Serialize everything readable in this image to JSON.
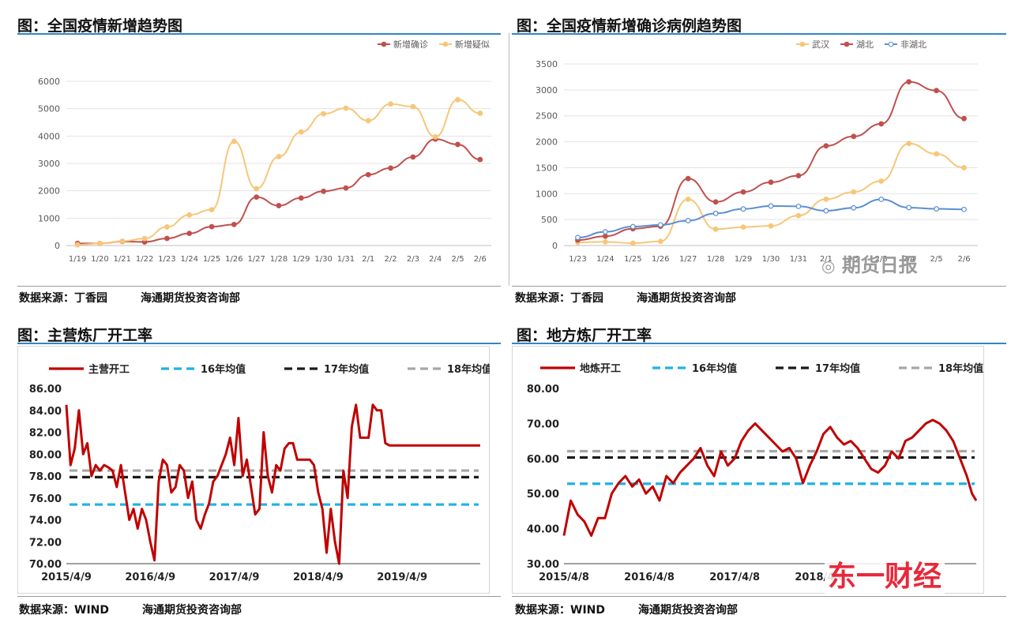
{
  "panels": [
    {
      "title": "图：全国疫情新增趋势图",
      "source": [
        "数据来源：丁香园",
        "海通期货投资咨询部"
      ]
    },
    {
      "title": "图：全国疫情新增确诊病例趋势图",
      "source": [
        "数据来源：丁香园",
        "海通期货投资咨询部"
      ]
    },
    {
      "title": "图：主营炼厂开工率",
      "source": [
        "数据来源：WIND",
        "海通期货投资咨询部"
      ]
    },
    {
      "title": "图：地方炼厂开工率",
      "source": [
        "数据来源：WIND",
        "海通期货投资咨询部"
      ]
    }
  ],
  "watermarks": {
    "qihuo": "期货日报",
    "dongyi": "东一财经"
  },
  "colors": {
    "accent_line": "#2f86c8",
    "red": "#c0504d",
    "orange": "#f5c779",
    "blue": "#5b8fd2",
    "dark_red": "#c00000",
    "cyan": "#1fb1e6",
    "black": "#1a1a1a",
    "gray": "#a6a6a6"
  },
  "chart_data": [
    {
      "type": "line",
      "categories": [
        "1/19",
        "1/20",
        "1/21",
        "1/22",
        "1/23",
        "1/24",
        "1/25",
        "1/26",
        "1/27",
        "1/28",
        "1/29",
        "1/30",
        "1/31",
        "2/1",
        "2/2",
        "2/3",
        "2/4",
        "2/5",
        "2/6"
      ],
      "ylim": [
        0,
        6000
      ],
      "yticks": [
        0,
        1000,
        2000,
        3000,
        4000,
        5000,
        6000
      ],
      "grid": true,
      "legend_position": "top-right",
      "series": [
        {
          "name": "新增确诊",
          "color": "#c0504d",
          "values": [
            77,
            77,
            149,
            131,
            259,
            444,
            688,
            769,
            1771,
            1459,
            1737,
            1982,
            2102,
            2590,
            2829,
            3235,
            3887,
            3694,
            3143
          ]
        },
        {
          "name": "新增疑似",
          "color": "#f5c779",
          "values": [
            27,
            77,
            158,
            257,
            680,
            1118,
            1309,
            3806,
            2077,
            3248,
            4148,
            4812,
            5019,
            4562,
            5173,
            5072,
            3971,
            5328,
            4833
          ]
        }
      ]
    },
    {
      "type": "line",
      "categories": [
        "1/23",
        "1/24",
        "1/25",
        "1/26",
        "1/27",
        "1/28",
        "1/29",
        "1/30",
        "1/31",
        "2/1",
        "2/2",
        "2/3",
        "2/4",
        "2/5",
        "2/6"
      ],
      "ylim": [
        0,
        3500
      ],
      "yticks": [
        0,
        500,
        1000,
        1500,
        2000,
        2500,
        3000,
        3500
      ],
      "grid": true,
      "legend_position": "top",
      "series": [
        {
          "name": "武汉",
          "color": "#f5c779",
          "values": [
            62,
            70,
            46,
            80,
            892,
            315,
            356,
            378,
            576,
            894,
            1033,
            1242,
            1967,
            1766,
            1501
          ]
        },
        {
          "name": "湖北",
          "color": "#c0504d",
          "values": [
            105,
            180,
            323,
            371,
            1291,
            840,
            1032,
            1220,
            1347,
            1921,
            2103,
            2345,
            3156,
            2987,
            2447
          ]
        },
        {
          "name": "非湖北",
          "color": "#5b8fd2",
          "values": [
            154,
            264,
            365,
            398,
            480,
            619,
            705,
            762,
            755,
            669,
            726,
            890,
            731,
            707,
            696
          ]
        }
      ]
    },
    {
      "type": "line",
      "x_tick_labels": [
        "2015/4/9",
        "2016/4/9",
        "2017/4/9",
        "2018/4/9",
        "2019/4/9"
      ],
      "x_range": [
        2015.27,
        2020.2
      ],
      "ylim": [
        70,
        86
      ],
      "yticks": [
        70.0,
        72.0,
        74.0,
        76.0,
        78.0,
        80.0,
        82.0,
        84.0,
        86.0
      ],
      "legend_position": "top",
      "series": [
        {
          "name": "主营开工",
          "color": "#c00000",
          "x": [
            2015.27,
            2015.32,
            2015.37,
            2015.42,
            2015.47,
            2015.52,
            2015.57,
            2015.62,
            2015.67,
            2015.72,
            2015.77,
            2015.82,
            2015.87,
            2015.92,
            2015.97,
            2016.02,
            2016.07,
            2016.12,
            2016.17,
            2016.22,
            2016.27,
            2016.32,
            2016.37,
            2016.42,
            2016.47,
            2016.52,
            2016.57,
            2016.62,
            2016.67,
            2016.72,
            2016.77,
            2016.82,
            2016.87,
            2016.92,
            2016.97,
            2017.02,
            2017.07,
            2017.12,
            2017.17,
            2017.22,
            2017.27,
            2017.32,
            2017.37,
            2017.42,
            2017.47,
            2017.52,
            2017.57,
            2017.62,
            2017.67,
            2017.72,
            2017.77,
            2017.82,
            2017.87,
            2017.92,
            2017.97,
            2018.02,
            2018.07,
            2018.12,
            2018.17,
            2018.22,
            2018.27,
            2018.32,
            2018.37,
            2018.42,
            2018.47,
            2018.52,
            2018.57,
            2018.62,
            2018.67,
            2018.72,
            2018.77,
            2018.82,
            2018.87,
            2018.92,
            2018.97,
            2019.02,
            2019.07,
            2019.12,
            2019.17,
            2019.22,
            2019.27,
            2019.32,
            2019.37,
            2019.42,
            2019.47,
            2019.52,
            2019.57,
            2019.62,
            2019.67,
            2019.72,
            2019.77,
            2019.82,
            2019.87,
            2019.92,
            2019.97,
            2020.02,
            2020.07,
            2020.12,
            2020.17,
            2020.2
          ],
          "values": [
            84.5,
            79.0,
            80.5,
            84.0,
            80.0,
            81.0,
            78.0,
            79.0,
            78.5,
            79.0,
            78.8,
            78.5,
            77.0,
            79.0,
            76.5,
            74.0,
            75.0,
            73.2,
            75.0,
            74.0,
            72.0,
            70.3,
            77.5,
            79.5,
            79.0,
            76.5,
            77.0,
            79.0,
            78.5,
            76.0,
            77.5,
            74.0,
            73.2,
            74.5,
            75.5,
            77.5,
            78.0,
            79.0,
            80.0,
            81.5,
            79.0,
            83.3,
            78.0,
            79.5,
            77.0,
            74.5,
            75.0,
            82.0,
            78.0,
            76.5,
            79.0,
            78.5,
            80.5,
            81.0,
            81.0,
            79.5,
            79.5,
            79.5,
            79.5,
            79.0,
            76.5,
            75.0,
            71.0,
            75.0,
            72.0,
            70.0,
            78.5,
            76.0,
            82.5,
            84.5,
            81.5,
            81.5,
            81.5,
            84.5,
            84.0,
            84.0,
            81.0,
            80.8,
            80.8,
            80.8,
            80.8,
            80.8,
            80.8,
            80.8,
            80.8,
            80.8,
            80.8,
            80.8,
            80.8,
            80.8,
            80.8,
            80.8,
            80.8,
            80.8,
            80.8,
            80.8,
            80.8,
            80.8,
            80.8,
            80.8
          ]
        },
        {
          "name": "16年均值",
          "color": "#1fb1e6",
          "dashed": true,
          "constant": 75.4
        },
        {
          "name": "17年均值",
          "color": "#1a1a1a",
          "dashed": true,
          "constant": 77.9
        },
        {
          "name": "18年均值",
          "color": "#a6a6a6",
          "dashed": true,
          "constant": 78.5
        }
      ]
    },
    {
      "type": "line",
      "x_tick_labels": [
        "2015/4/8",
        "2016/4/8",
        "2017/4/8",
        "2018/4/8"
      ],
      "x_range": [
        2015.27,
        2020.1
      ],
      "ylim": [
        30,
        80
      ],
      "yticks": [
        30.0,
        40.0,
        50.0,
        60.0,
        70.0,
        80.0
      ],
      "legend_position": "top",
      "series": [
        {
          "name": "地炼开工",
          "color": "#c00000",
          "x": [
            2015.27,
            2015.35,
            2015.43,
            2015.51,
            2015.59,
            2015.67,
            2015.75,
            2015.83,
            2015.91,
            2015.99,
            2016.07,
            2016.15,
            2016.23,
            2016.31,
            2016.39,
            2016.47,
            2016.55,
            2016.63,
            2016.71,
            2016.79,
            2016.87,
            2016.95,
            2017.03,
            2017.11,
            2017.19,
            2017.27,
            2017.35,
            2017.43,
            2017.51,
            2017.59,
            2017.67,
            2017.75,
            2017.83,
            2017.91,
            2017.99,
            2018.07,
            2018.15,
            2018.23,
            2018.31,
            2018.39,
            2018.47,
            2018.55,
            2018.63,
            2018.71,
            2018.79,
            2018.87,
            2018.95,
            2019.03,
            2019.11,
            2019.19,
            2019.27,
            2019.35,
            2019.43,
            2019.51,
            2019.59,
            2019.67,
            2019.75,
            2019.83,
            2019.91,
            2019.99,
            2020.05,
            2020.1
          ],
          "values": [
            38,
            48,
            44,
            42,
            38,
            43,
            43,
            50,
            53,
            55,
            52,
            54,
            50,
            52,
            48,
            55,
            53,
            56,
            58,
            60,
            63,
            58,
            55,
            62,
            58,
            60,
            65,
            68,
            70,
            68,
            66,
            64,
            62,
            63,
            60,
            53,
            58,
            62,
            67,
            69,
            66,
            64,
            65,
            63,
            60,
            57,
            56,
            58,
            62,
            60,
            65,
            66,
            68,
            70,
            71,
            70,
            68,
            65,
            60,
            55,
            50,
            48
          ]
        },
        {
          "name": "16年均值",
          "color": "#1fb1e6",
          "dashed": true,
          "constant": 52.8
        },
        {
          "name": "17年均值",
          "color": "#1a1a1a",
          "dashed": true,
          "constant": 60.3
        },
        {
          "name": "18年均值",
          "color": "#a6a6a6",
          "dashed": true,
          "constant": 62.1
        }
      ]
    }
  ]
}
